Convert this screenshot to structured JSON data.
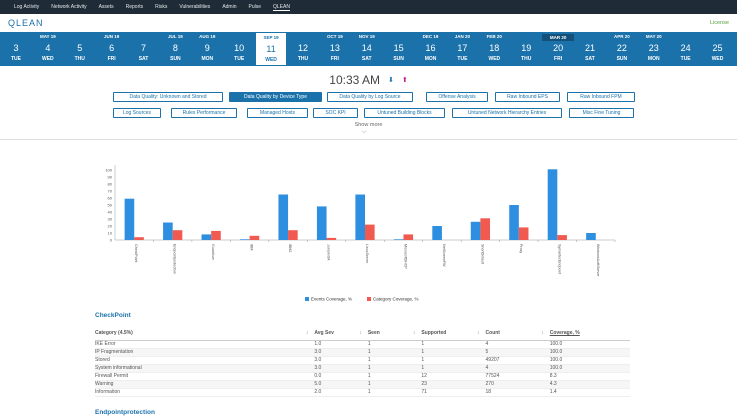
{
  "nav": {
    "items": [
      "Log Activity",
      "Network Activity",
      "Assets",
      "Reports",
      "Risks",
      "Vulnerabilities",
      "Admin",
      "Pulse",
      "QLEAN"
    ],
    "active_index": 8
  },
  "app": {
    "logo": "QLEAN",
    "license": "License"
  },
  "dates": [
    {
      "month": "",
      "num": "3",
      "dow": "TUE"
    },
    {
      "month": "MAY 19",
      "num": "4",
      "dow": "WED"
    },
    {
      "month": "",
      "num": "5",
      "dow": "THU"
    },
    {
      "month": "JUN 19",
      "num": "6",
      "dow": "FRI"
    },
    {
      "month": "",
      "num": "7",
      "dow": "SAT"
    },
    {
      "month": "JUL 19",
      "num": "8",
      "dow": "SUN"
    },
    {
      "month": "AUG 19",
      "num": "9",
      "dow": "MON"
    },
    {
      "month": "",
      "num": "10",
      "dow": "TUE"
    },
    {
      "month": "SEP 19",
      "num": "11",
      "dow": "WED"
    },
    {
      "month": "",
      "num": "12",
      "dow": "THU"
    },
    {
      "month": "OCT 19",
      "num": "13",
      "dow": "FRI"
    },
    {
      "month": "NOV 19",
      "num": "14",
      "dow": "SAT"
    },
    {
      "month": "",
      "num": "15",
      "dow": "SUN"
    },
    {
      "month": "DEC 19",
      "num": "16",
      "dow": "MON"
    },
    {
      "month": "JAN 20",
      "num": "17",
      "dow": "TUE"
    },
    {
      "month": "FEB 20",
      "num": "18",
      "dow": "WED"
    },
    {
      "month": "",
      "num": "19",
      "dow": "THU"
    },
    {
      "month": "MAR 20",
      "num": "20",
      "dow": "FRI"
    },
    {
      "month": "",
      "num": "21",
      "dow": "SAT"
    },
    {
      "month": "APR 20",
      "num": "22",
      "dow": "SUN"
    },
    {
      "month": "MAY 20",
      "num": "23",
      "dow": "MON"
    },
    {
      "month": "",
      "num": "24",
      "dow": "TUE"
    },
    {
      "month": "",
      "num": "25",
      "dow": "WED"
    }
  ],
  "selected_date_index": 8,
  "time": "10:33 AM",
  "buttons_row1": [
    "Data Quality: Unknown and Stored",
    "Data Quality by Device Type",
    "Data Quality by Log Source",
    "Offense Analysis",
    "Raw Inbound EPS",
    "Raw Inbound FPM"
  ],
  "buttons_row2": [
    "Log Sources",
    "Rules Performance",
    "Managed Hosts",
    "SOC KPI",
    "Untuned Building Blocks",
    "Untuned Network Hierarchy Entries",
    "Misc Fine Tuning"
  ],
  "active_button": "Data Quality by Device Type",
  "show_more": "Show more",
  "chart_data": {
    "type": "bar",
    "categories": [
      "CheckPoint",
      "Endpointprotection",
      "GuardIum",
      "IBM",
      "IBM2",
      "JuniperSA",
      "LinuxServer",
      "MicrosoftDHCP",
      "NetScreenFW",
      "SnortDefault",
      "Proxy",
      "SymantecEndpoint",
      "WindowsAuthServer"
    ],
    "series": [
      {
        "name": "Events Coverage, %",
        "color": "#2e8fe0",
        "values": [
          59,
          25,
          8,
          1,
          65,
          48,
          65,
          1,
          20,
          26,
          50,
          101,
          10
        ]
      },
      {
        "name": "Category Coverage, %",
        "color": "#f05a50",
        "values": [
          4,
          14,
          13,
          6,
          14,
          3,
          22,
          8,
          0,
          31,
          18,
          7,
          0
        ]
      }
    ],
    "ylim": [
      0,
      100
    ],
    "yticks": [
      0,
      10,
      20,
      30,
      40,
      50,
      60,
      70,
      80,
      90,
      100
    ],
    "legend": "bottom"
  },
  "section": {
    "title": "CheckPoint",
    "next_title": "Endpointprotection"
  },
  "table": {
    "headers": [
      "Category (4.5%)",
      "Avg Sev",
      "Seen",
      "Supported",
      "Count",
      "Coverage, %"
    ],
    "rows": [
      [
        "IKE Error",
        "1.0",
        "1",
        "1",
        "4",
        "100.0"
      ],
      [
        "IP Fragmentation",
        "3.0",
        "1",
        "1",
        "5",
        "100.0"
      ],
      [
        "Stored",
        "3.0",
        "1",
        "1",
        "49207",
        "100.0"
      ],
      [
        "System informational",
        "3.0",
        "1",
        "1",
        "4",
        "100.0"
      ],
      [
        "Firewall Permit",
        "0.0",
        "1",
        "12",
        "77524",
        "8.3"
      ],
      [
        "Warning",
        "5.0",
        "1",
        "23",
        "270",
        "4.3"
      ],
      [
        "Information",
        "2.0",
        "1",
        "71",
        "18",
        "1.4"
      ]
    ]
  }
}
